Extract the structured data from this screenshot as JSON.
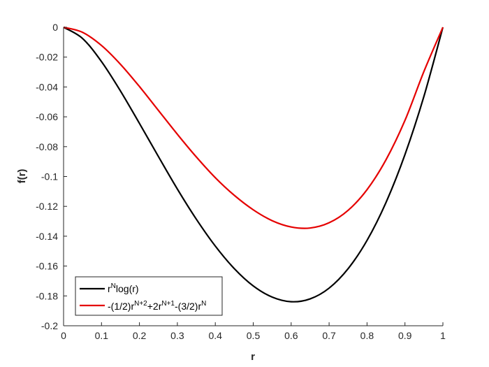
{
  "chart_data": {
    "type": "line",
    "title": "",
    "xlabel": "r",
    "ylabel": "f(r)",
    "xlim": [
      0,
      1
    ],
    "ylim": [
      -0.2,
      0
    ],
    "grid": false,
    "legend_position": "bottom-left",
    "x_ticks": [
      "0",
      "0.1",
      "0.2",
      "0.3",
      "0.4",
      "0.5",
      "0.6",
      "0.7",
      "0.8",
      "0.9",
      "1"
    ],
    "y_ticks": [
      "0",
      "-0.02",
      "-0.04",
      "-0.06",
      "-0.08",
      "-0.1",
      "-0.12",
      "-0.14",
      "-0.16",
      "-0.18",
      "-0.2"
    ],
    "x": [
      0,
      0.05,
      0.1,
      0.15,
      0.2,
      0.25,
      0.3,
      0.35,
      0.4,
      0.45,
      0.5,
      0.55,
      0.6,
      0.65,
      0.7,
      0.75,
      0.8,
      0.85,
      0.9,
      0.95,
      1
    ],
    "series": [
      {
        "name": "r^N log(r)",
        "color": "#000000",
        "values": [
          0,
          -0.0075,
          -0.023,
          -0.0427,
          -0.0644,
          -0.0866,
          -0.1084,
          -0.1286,
          -0.1466,
          -0.1617,
          -0.1733,
          -0.1808,
          -0.1839,
          -0.182,
          -0.1748,
          -0.1618,
          -0.1428,
          -0.1174,
          -0.0853,
          -0.0463,
          0
        ]
      },
      {
        "name": "-(1/2)r^(N+2)+2r^(N+1)-(3/2)r^N",
        "color": "#e50000",
        "values": [
          0,
          -0.0034,
          -0.0122,
          -0.0248,
          -0.0397,
          -0.0557,
          -0.0717,
          -0.0869,
          -0.1008,
          -0.1126,
          -0.1223,
          -0.1296,
          -0.1338,
          -0.1345,
          -0.131,
          -0.1227,
          -0.1088,
          -0.0888,
          -0.0624,
          -0.0296,
          0
        ]
      }
    ],
    "legend": {
      "entry1": {
        "base": "r",
        "sup": "N",
        "tail": "log(r)"
      },
      "entry2": {
        "p1": "-(1/2)r",
        "s1": "N+2",
        "p2": "+2r",
        "s2": "N+1",
        "p3": "-(3/2)r",
        "s3": "N"
      }
    }
  }
}
